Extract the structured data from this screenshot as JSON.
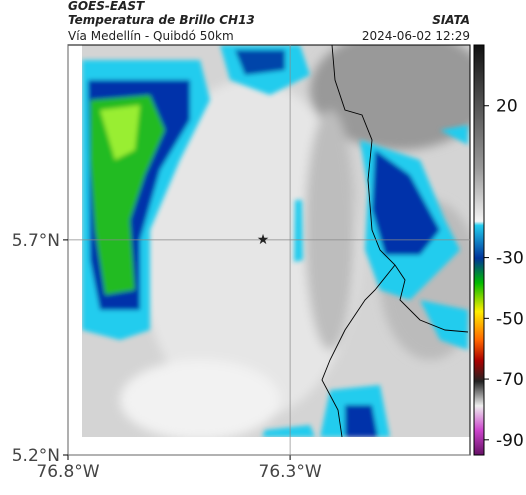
{
  "header": {
    "title": "GOES-EAST",
    "subtitle": "Temperatura de Brillo CH13",
    "route": "Vía Medellín - Quibdó 50km",
    "source": "SIATA",
    "date": "2024-06-02 12:29"
  },
  "map": {
    "xlim": [
      -76.8,
      -75.895
    ],
    "ylim": [
      5.2,
      6.153
    ],
    "xticks": [
      {
        "value": -76.8,
        "label": "76.8°W"
      },
      {
        "value": -76.3,
        "label": "76.3°W"
      }
    ],
    "yticks": [
      {
        "value": 5.2,
        "label": "5.2°N"
      },
      {
        "value": 5.7,
        "label": "5.7°N"
      }
    ],
    "grid": true
  },
  "colorbar": {
    "lim": [
      -95,
      40
    ],
    "ticks": [
      20,
      -30,
      -50,
      -70,
      -90
    ]
  }
}
